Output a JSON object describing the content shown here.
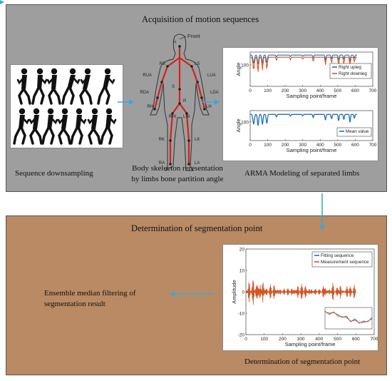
{
  "top_panel": {
    "title": "Acquisition of motion sequences",
    "caption_left": "Sequence downsampling",
    "caption_mid_line1": "Body skelecton reresentation",
    "caption_mid_line2": "by limbs bone partition angle",
    "caption_right": "ARMA Modeling of separated limbs",
    "background": "#9e9e9e"
  },
  "bottom_panel": {
    "title": "Determination of segmentation point",
    "result_line1": "Ensemble median filtering of",
    "result_line2": "segmentation result",
    "chart_caption": "Determination of segmentation point",
    "background": "#b98a63"
  },
  "skeleton": {
    "front_label": "Front",
    "joints": [
      "H",
      "RUA",
      "RS",
      "LS",
      "LUA",
      "RDA",
      "S",
      "LDA",
      "RH",
      "R",
      "LH",
      "RHI",
      "LHI",
      "RK",
      "LK",
      "RA",
      "LA"
    ]
  },
  "colors": {
    "arrow": "#3aa6dd",
    "blue_series": "#1f6fb5",
    "orange_series": "#d9541e",
    "skeleton": "#d62020"
  },
  "chart_data": [
    {
      "type": "line",
      "xlabel": "Sampling point/frame",
      "ylabel": "Angle",
      "xlim": [
        0,
        700
      ],
      "xticks": [
        0,
        100,
        200,
        300,
        400,
        500,
        600,
        700
      ],
      "yticks": [
        100
      ],
      "series": [
        {
          "name": "Right upleg",
          "color": "#1f6fb5"
        },
        {
          "name": "Right downleg",
          "color": "#d9541e"
        }
      ]
    },
    {
      "type": "line",
      "xlabel": "Sampling point/frame",
      "ylabel": "Angle",
      "xlim": [
        0,
        700
      ],
      "xticks": [
        0,
        100,
        200,
        300,
        400,
        500,
        600,
        700
      ],
      "yticks": [
        100
      ],
      "series": [
        {
          "name": "Mean value",
          "color": "#1f6fb5"
        }
      ]
    },
    {
      "type": "line",
      "xlabel": "Sampling point/frame",
      "ylabel": "Amplitude",
      "xlim": [
        0,
        700
      ],
      "ylim": [
        -20,
        20
      ],
      "xticks": [
        0,
        100,
        200,
        300,
        400,
        500,
        600,
        700
      ],
      "yticks": [
        20,
        10,
        0,
        -10,
        -20
      ],
      "series": [
        {
          "name": "Fitting sequence",
          "color": "#1f6fb5"
        },
        {
          "name": "Measurement sequence",
          "color": "#d9541e"
        }
      ]
    }
  ]
}
